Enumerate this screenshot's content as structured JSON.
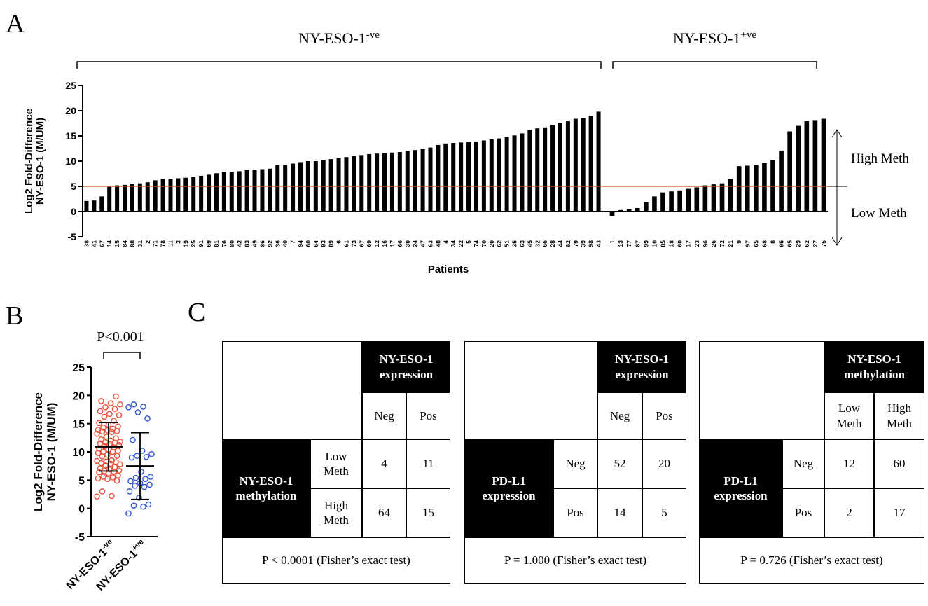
{
  "chart_data": [
    {
      "type": "bar",
      "panel": "A",
      "ylabel": [
        "Log2 Fold-Difference",
        "NY-ESO-1 (M/UM)"
      ],
      "xlabel": "Patients",
      "ylim": [
        -5,
        25
      ],
      "yticks": [
        -5,
        0,
        5,
        10,
        15,
        20,
        25
      ],
      "color": "#000000",
      "threshold": 5,
      "threshold_color": "#e0452f",
      "annotations": [
        "High Meth",
        "Low Meth"
      ],
      "groups": [
        {
          "label": "NY-ESO-1",
          "superscript": "-ve",
          "categories": [
            "38",
            "41",
            "67",
            "14",
            "15",
            "84",
            "88",
            "31",
            "2",
            "71",
            "78",
            "11",
            "3",
            "19",
            "25",
            "91",
            "69",
            "81",
            "76",
            "80",
            "42",
            "83",
            "49",
            "86",
            "92",
            "36",
            "40",
            "7",
            "94",
            "60",
            "64",
            "93",
            "89",
            "6",
            "61",
            "73",
            "67",
            "69",
            "12",
            "16",
            "17",
            "66",
            "30",
            "24",
            "47",
            "63",
            "48",
            "4",
            "34",
            "22",
            "5",
            "74",
            "70",
            "20",
            "62",
            "51",
            "35",
            "63",
            "45",
            "32",
            "66",
            "28",
            "44",
            "82",
            "79",
            "39",
            "98",
            "43"
          ],
          "values": [
            2.1,
            2.2,
            3.0,
            4.9,
            5.2,
            5.3,
            5.5,
            5.6,
            5.8,
            6.2,
            6.4,
            6.5,
            6.6,
            6.7,
            6.9,
            7.1,
            7.3,
            7.6,
            7.8,
            7.9,
            8.0,
            8.2,
            8.3,
            8.4,
            8.5,
            9.2,
            9.3,
            9.5,
            9.8,
            10.0,
            10.0,
            10.2,
            10.4,
            10.6,
            10.8,
            11.0,
            11.2,
            11.4,
            11.5,
            11.6,
            11.7,
            11.8,
            12.0,
            12.2,
            12.4,
            12.7,
            13.2,
            13.5,
            13.6,
            13.7,
            13.8,
            13.9,
            14.1,
            14.3,
            14.5,
            14.8,
            15.1,
            15.5,
            16.2,
            16.5,
            16.7,
            17.2,
            17.6,
            17.9,
            18.4,
            18.6,
            19.0,
            19.8
          ]
        },
        {
          "label": "NY-ESO-1",
          "superscript": "+ve",
          "categories": [
            "1",
            "13",
            "77",
            "87",
            "99",
            "10",
            "85",
            "18",
            "60",
            "17",
            "23",
            "96",
            "26",
            "72",
            "21",
            "9",
            "97",
            "65",
            "68",
            "8",
            "95",
            "65",
            "29",
            "62",
            "27",
            "75"
          ],
          "values": [
            -0.9,
            0.3,
            0.5,
            0.7,
            1.9,
            3.0,
            3.8,
            4.0,
            4.2,
            4.5,
            4.8,
            5.2,
            5.4,
            5.6,
            6.5,
            9.0,
            9.1,
            9.3,
            9.6,
            10.2,
            12.1,
            15.9,
            17.0,
            17.9,
            18.0,
            18.4
          ]
        }
      ]
    },
    {
      "type": "scatter",
      "panel": "B",
      "ylabel": [
        "Log2 Fold-Difference",
        "NY-ESO-1 (M/UM)"
      ],
      "ylim": [
        -5,
        25
      ],
      "yticks": [
        -5,
        0,
        5,
        10,
        15,
        20,
        25
      ],
      "p_label": "P<0.001",
      "groups": [
        {
          "label": "NY-ESO-1",
          "superscript": "-ve",
          "color": "#e8513a",
          "mean": 10.9,
          "sd": 4.3
        },
        {
          "label": "NY-ESO-1",
          "superscript": "+ve",
          "color": "#2f55d4",
          "mean": 7.5,
          "sd": 5.9
        }
      ]
    }
  ],
  "panel_c": {
    "label": "C",
    "tables": [
      {
        "col_header": "NY-ESO-1 expression",
        "cols": [
          "Neg",
          "Pos"
        ],
        "row_header": "NY-ESO-1 methylation",
        "rows": [
          "Low Meth",
          "High Meth"
        ],
        "cells": [
          [
            4,
            11
          ],
          [
            64,
            15
          ]
        ],
        "footer": "P < 0.0001 (Fisher’s exact test)"
      },
      {
        "col_header": "NY-ESO-1 expression",
        "cols": [
          "Neg",
          "Pos"
        ],
        "row_header": "PD-L1 expression",
        "rows": [
          "Neg",
          "Pos"
        ],
        "cells": [
          [
            52,
            20
          ],
          [
            14,
            5
          ]
        ],
        "footer": "P = 1.000 (Fisher’s exact test)"
      },
      {
        "col_header": "NY-ESO-1 methylation",
        "cols": [
          "Low Meth",
          "High Meth"
        ],
        "row_header": "PD-L1 expression",
        "rows": [
          "Neg",
          "Pos"
        ],
        "cells": [
          [
            12,
            60
          ],
          [
            2,
            17
          ]
        ],
        "footer": "P = 0.726 (Fisher’s exact test)"
      }
    ]
  }
}
